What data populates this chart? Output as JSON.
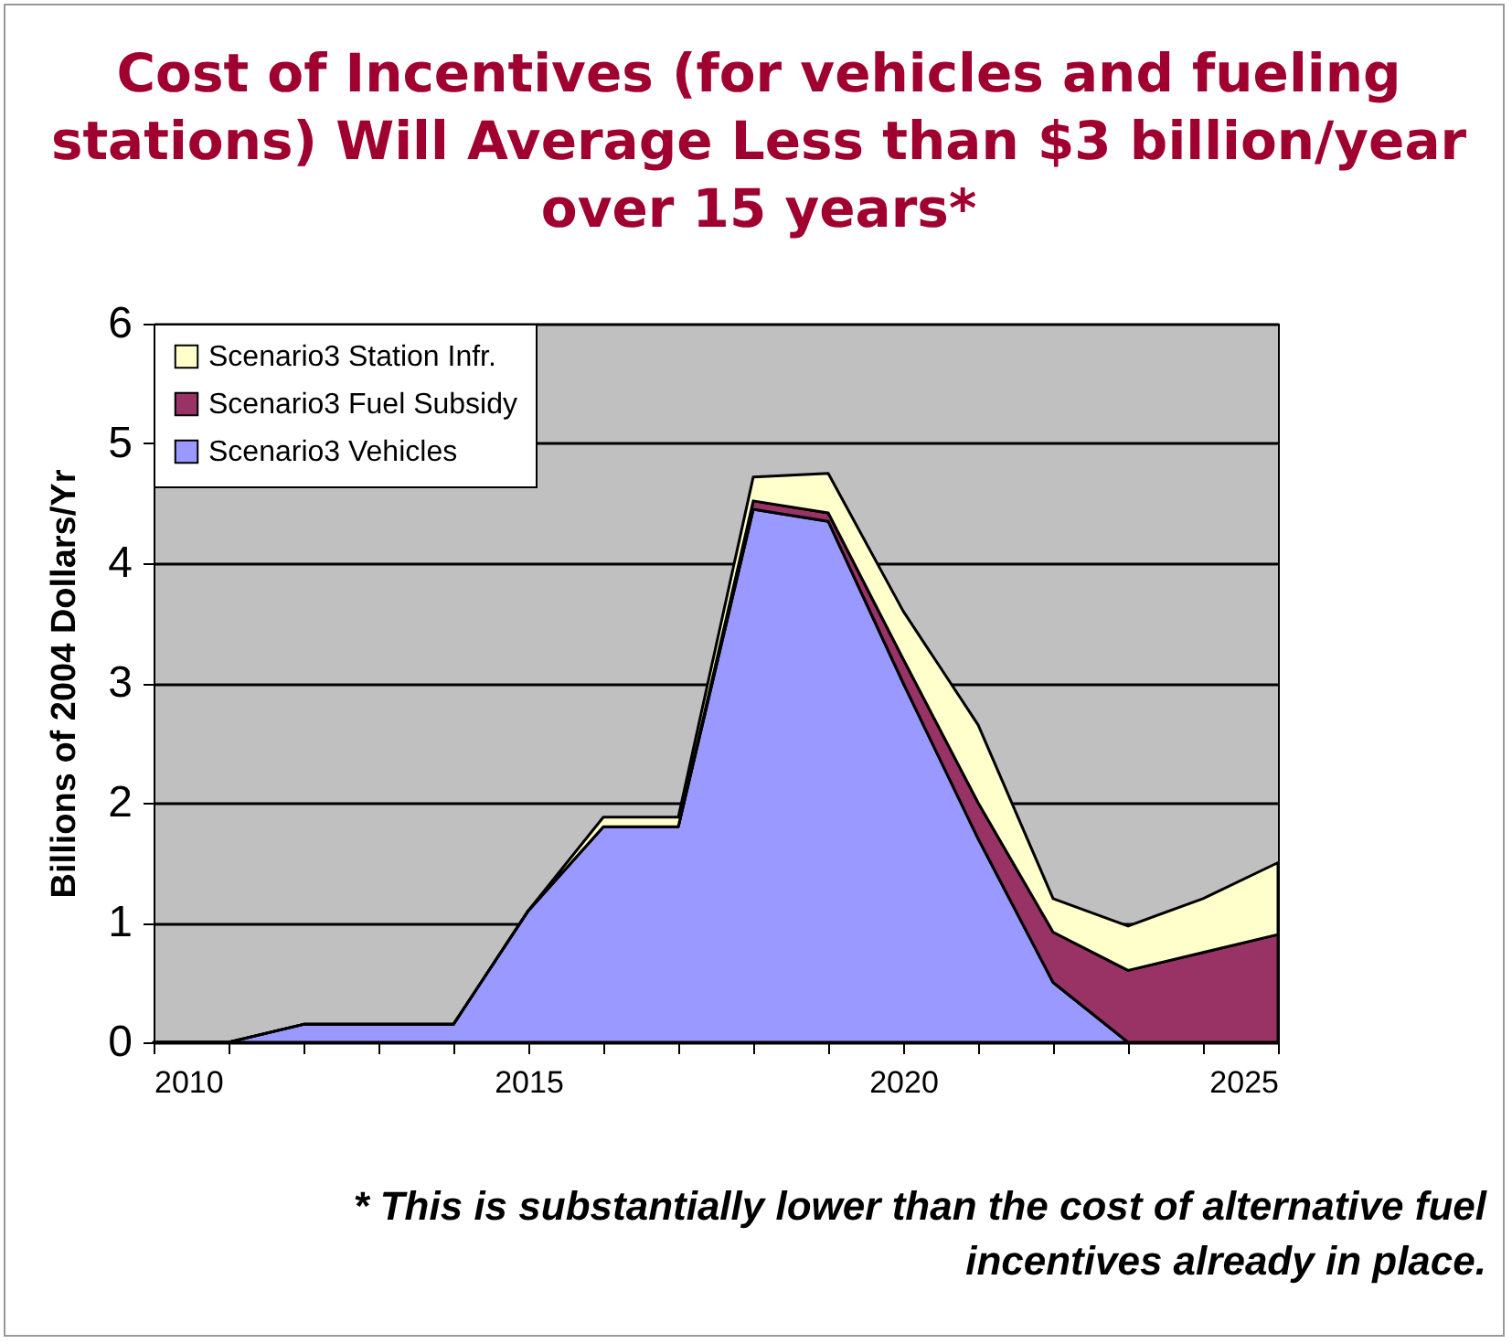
{
  "chart_data": {
    "type": "area",
    "title": "Cost of Incentives (for vehicles and fueling stations) Will Average Less than $3 billion/year over 15 years*",
    "ylabel": "Billions of 2004 Dollars/Yr",
    "x": [
      2010,
      2011,
      2012,
      2013,
      2014,
      2015,
      2016,
      2017,
      2018,
      2019,
      2020,
      2021,
      2022,
      2023,
      2024,
      2025
    ],
    "stacked": true,
    "series": [
      {
        "name": "Scenario3 Vehicles",
        "color": "#9999ff",
        "values": [
          0,
          0,
          0.15,
          0.15,
          0.15,
          1.1,
          1.8,
          1.8,
          4.45,
          4.35,
          3.0,
          1.7,
          0.5,
          0,
          0,
          0
        ]
      },
      {
        "name": "Scenario3 Fuel Subsidy",
        "color": "#993366",
        "values": [
          0,
          0,
          0,
          0,
          0,
          0,
          0,
          0,
          0.07,
          0.07,
          0.2,
          0.3,
          0.42,
          0.6,
          0.75,
          0.9
        ]
      },
      {
        "name": "Scenario3 Station Infr.",
        "color": "#ffffcc",
        "values": [
          0,
          0,
          0,
          0,
          0,
          0,
          0.08,
          0.08,
          0.2,
          0.33,
          0.4,
          0.65,
          0.28,
          0.37,
          0.45,
          0.6
        ]
      }
    ],
    "xlim": [
      2010,
      2025
    ],
    "xticks": [
      2010,
      {
        "value": 2011,
        "label": null
      },
      {
        "value": 2012,
        "label": null
      },
      {
        "value": 2013,
        "label": null
      },
      {
        "value": 2014,
        "label": null
      },
      2015,
      {
        "value": 2016,
        "label": null
      },
      {
        "value": 2017,
        "label": null
      },
      {
        "value": 2018,
        "label": null
      },
      {
        "value": 2019,
        "label": null
      },
      2020,
      {
        "value": 2021,
        "label": null
      },
      {
        "value": 2022,
        "label": null
      },
      {
        "value": 2023,
        "label": null
      },
      {
        "value": 2024,
        "label": null
      },
      2025
    ],
    "ylim": [
      0,
      6
    ],
    "yticks": [
      0,
      1,
      2,
      3,
      4,
      5,
      6
    ],
    "grid": "y",
    "legend": "top left",
    "annotations": [
      "* This is substantially lower than the cost of alternative fuel incentives already in place."
    ]
  }
}
